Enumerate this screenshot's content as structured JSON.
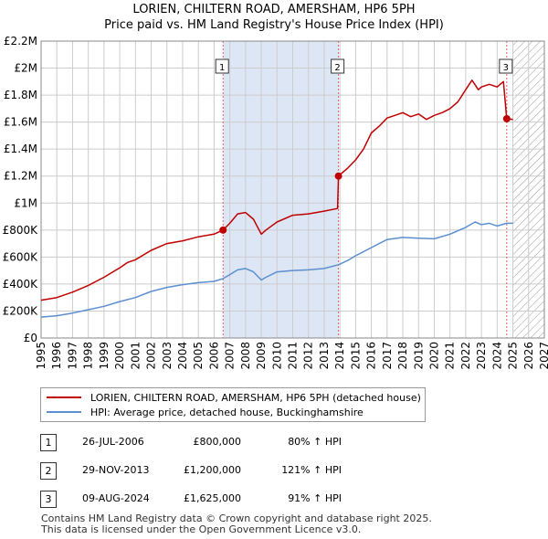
{
  "title": {
    "line1": "LORIEN, CHILTERN ROAD, AMERSHAM, HP6 5PH",
    "line2": "Price paid vs. HM Land Registry's House Price Index (HPI)"
  },
  "colors": {
    "property": "#c00000",
    "hpi": "#5b8fd0",
    "grid": "#cccccc",
    "shade": "#dde6f5",
    "hatch": "#999999",
    "sale_line": "#e06060"
  },
  "legend": {
    "property_label": "LORIEN, CHILTERN ROAD, AMERSHAM, HP6 5PH (detached house)",
    "hpi_label": "HPI: Average price, detached house, Buckinghamshire"
  },
  "sales": [
    {
      "num": "1",
      "date": "26-JUL-2006",
      "price": "£800,000",
      "hpi_change": "80% ↑ HPI",
      "year": 2006.57,
      "value": 800000
    },
    {
      "num": "2",
      "date": "29-NOV-2013",
      "price": "£1,200,000",
      "hpi_change": "121% ↑ HPI",
      "year": 2013.91,
      "value": 1200000
    },
    {
      "num": "3",
      "date": "09-AUG-2024",
      "price": "£1,625,000",
      "hpi_change": "91% ↑ HPI",
      "year": 2024.61,
      "value": 1625000
    }
  ],
  "footer": {
    "line1": "Contains HM Land Registry data © Crown copyright and database right 2025.",
    "line2": "This data is licensed under the Open Government Licence v3.0."
  },
  "chart_data": {
    "type": "line",
    "title": "LORIEN, CHILTERN ROAD, AMERSHAM, HP6 5PH",
    "subtitle": "Price paid vs. HM Land Registry's House Price Index (HPI)",
    "xlabel": "",
    "ylabel": "",
    "xlim": [
      1995,
      2027
    ],
    "ylim": [
      0,
      2200000
    ],
    "y_ticks": [
      0,
      200000,
      400000,
      600000,
      800000,
      1000000,
      1200000,
      1400000,
      1600000,
      1800000,
      2000000,
      2200000
    ],
    "y_tick_labels": [
      "£0",
      "£200K",
      "£400K",
      "£600K",
      "£800K",
      "£1M",
      "£1.2M",
      "£1.4M",
      "£1.6M",
      "£1.8M",
      "£2M",
      "£2.2M"
    ],
    "x_ticks": [
      1995,
      1996,
      1997,
      1998,
      1999,
      2000,
      2001,
      2002,
      2003,
      2004,
      2005,
      2006,
      2007,
      2008,
      2009,
      2010,
      2011,
      2012,
      2013,
      2014,
      2015,
      2016,
      2017,
      2018,
      2019,
      2020,
      2021,
      2022,
      2023,
      2024,
      2025,
      2026,
      2027
    ],
    "grid": true,
    "shaded_period": [
      2006.57,
      2013.91
    ],
    "hatched_future_from": 2025.0,
    "series": [
      {
        "name": "LORIEN, CHILTERN ROAD, AMERSHAM, HP6 5PH (detached house)",
        "x": [
          1995.0,
          1996.0,
          1997.0,
          1998.0,
          1999.0,
          2000.0,
          2000.5,
          2001.0,
          2002.0,
          2003.0,
          2004.0,
          2005.0,
          2006.0,
          2006.57,
          2007.0,
          2007.5,
          2008.0,
          2008.5,
          2009.0,
          2009.3,
          2010.0,
          2011.0,
          2012.0,
          2013.0,
          2013.85,
          2013.91,
          2014.5,
          2015.0,
          2015.5,
          2016.0,
          2016.5,
          2017.0,
          2017.5,
          2018.0,
          2018.5,
          2019.0,
          2019.5,
          2020.0,
          2020.5,
          2021.0,
          2021.5,
          2022.0,
          2022.4,
          2022.8,
          2023.0,
          2023.5,
          2024.0,
          2024.4,
          2024.61,
          2025.0
        ],
        "values": [
          280000,
          300000,
          340000,
          390000,
          450000,
          520000,
          560000,
          580000,
          650000,
          700000,
          720000,
          750000,
          770000,
          800000,
          850000,
          920000,
          930000,
          880000,
          770000,
          800000,
          860000,
          910000,
          920000,
          940000,
          960000,
          1200000,
          1260000,
          1320000,
          1400000,
          1520000,
          1570000,
          1630000,
          1650000,
          1670000,
          1640000,
          1660000,
          1620000,
          1650000,
          1670000,
          1700000,
          1750000,
          1840000,
          1910000,
          1840000,
          1860000,
          1880000,
          1860000,
          1900000,
          1625000,
          1620000
        ]
      },
      {
        "name": "HPI: Average price, detached house, Buckinghamshire",
        "x": [
          1995.0,
          1996.0,
          1997.0,
          1998.0,
          1999.0,
          2000.0,
          2001.0,
          2002.0,
          2003.0,
          2004.0,
          2005.0,
          2006.0,
          2006.57,
          2007.0,
          2007.5,
          2008.0,
          2008.5,
          2009.0,
          2009.3,
          2010.0,
          2011.0,
          2012.0,
          2013.0,
          2013.91,
          2014.5,
          2015.0,
          2016.0,
          2017.0,
          2018.0,
          2019.0,
          2020.0,
          2021.0,
          2022.0,
          2022.6,
          2023.0,
          2023.5,
          2024.0,
          2024.61,
          2025.0
        ],
        "values": [
          155000,
          165000,
          185000,
          210000,
          235000,
          270000,
          300000,
          345000,
          375000,
          395000,
          410000,
          420000,
          440000,
          470000,
          505000,
          515000,
          490000,
          430000,
          450000,
          490000,
          500000,
          505000,
          515000,
          543000,
          575000,
          610000,
          670000,
          730000,
          745000,
          740000,
          735000,
          770000,
          820000,
          860000,
          840000,
          850000,
          830000,
          850000,
          850000
        ]
      }
    ]
  }
}
